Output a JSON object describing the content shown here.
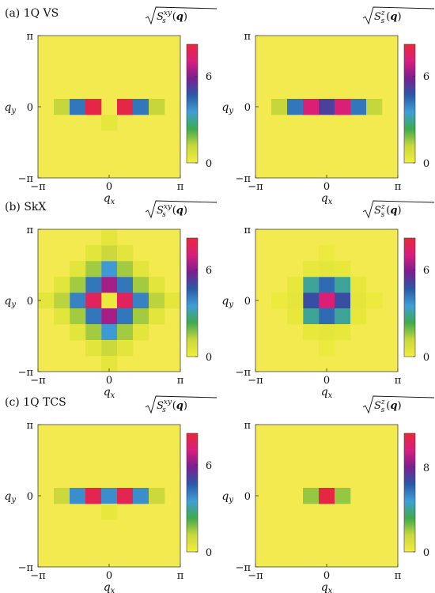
{
  "colors": {
    "background": "#f2ea4e",
    "scale": [
      "#f3ee3c",
      "#c9d83c",
      "#3faa4d",
      "#3e9fd6",
      "#2a59a8",
      "#7a1f8f",
      "#d91e7e",
      "#e8283b"
    ]
  },
  "axis_text": {
    "pi": "π",
    "neg_pi": "−π",
    "zero": "0",
    "q": "q",
    "x_sub": "x",
    "y_sub": "y"
  },
  "colorbar_text": {
    "xy_sup": "xy",
    "z_sup": "z",
    "sub": "s",
    "bold_q": "q"
  },
  "chart_data": [
    {
      "type": "heatmap",
      "panel_label": "(a) 1Q VS",
      "quantity": "sqrt(S_s^xy(q))",
      "xlabel": "q_x",
      "ylabel": "q_y",
      "xlim": [
        "-π",
        "π"
      ],
      "ylim": [
        "-π",
        "π"
      ],
      "grid_size": 9,
      "vmax": 8.2,
      "colorbar_ticks": [
        0,
        6
      ],
      "cells": [
        {
          "i": -3,
          "j": 0,
          "v": 1.2
        },
        {
          "i": -2,
          "j": 0,
          "v": 4.2
        },
        {
          "i": -1,
          "j": 0,
          "v": 8.0
        },
        {
          "i": 1,
          "j": 0,
          "v": 8.0
        },
        {
          "i": 2,
          "j": 0,
          "v": 4.2
        },
        {
          "i": 3,
          "j": 0,
          "v": 1.2
        },
        {
          "i": 0,
          "j": -1,
          "v": 0.35
        }
      ]
    },
    {
      "type": "heatmap",
      "panel_label": "",
      "quantity": "sqrt(S_s^z(q))",
      "xlabel": "q_x",
      "ylabel": "q_y",
      "xlim": [
        "-π",
        "π"
      ],
      "ylim": [
        "-π",
        "π"
      ],
      "grid_size": 9,
      "vmax": 8.2,
      "colorbar_ticks": [
        0,
        6
      ],
      "cells": [
        {
          "i": -3,
          "j": 0,
          "v": 1.2
        },
        {
          "i": -2,
          "j": 0,
          "v": 4.2
        },
        {
          "i": -1,
          "j": 0,
          "v": 7.2
        },
        {
          "i": 0,
          "j": 0,
          "v": 5.2
        },
        {
          "i": 1,
          "j": 0,
          "v": 7.2
        },
        {
          "i": 2,
          "j": 0,
          "v": 4.2
        },
        {
          "i": 3,
          "j": 0,
          "v": 1.2
        }
      ]
    },
    {
      "type": "heatmap",
      "panel_label": "(b) SkX",
      "quantity": "sqrt(S_s^xy(q))",
      "xlabel": "q_x",
      "ylabel": "q_y",
      "xlim": [
        "-π",
        "π"
      ],
      "ylim": [
        "-π",
        "π"
      ],
      "grid_size": 9,
      "vmax": 8.2,
      "colorbar_ticks": [
        0,
        6
      ],
      "cells": [
        {
          "i": 0,
          "j": 0,
          "v": 0.2
        },
        {
          "i": 1,
          "j": 0,
          "v": 7.6
        },
        {
          "i": -1,
          "j": 0,
          "v": 7.6
        },
        {
          "i": 0,
          "j": 1,
          "v": 6.4
        },
        {
          "i": 0,
          "j": -1,
          "v": 6.4
        },
        {
          "i": 1,
          "j": 1,
          "v": 4.2
        },
        {
          "i": -1,
          "j": 1,
          "v": 4.2
        },
        {
          "i": 1,
          "j": -1,
          "v": 4.2
        },
        {
          "i": -1,
          "j": -1,
          "v": 4.2
        },
        {
          "i": 2,
          "j": 0,
          "v": 4.0
        },
        {
          "i": -2,
          "j": 0,
          "v": 4.0
        },
        {
          "i": 0,
          "j": 2,
          "v": 3.6
        },
        {
          "i": 0,
          "j": -2,
          "v": 3.6
        },
        {
          "i": 2,
          "j": 1,
          "v": 1.5
        },
        {
          "i": -2,
          "j": 1,
          "v": 1.5
        },
        {
          "i": 2,
          "j": -1,
          "v": 1.5
        },
        {
          "i": -2,
          "j": -1,
          "v": 1.5
        },
        {
          "i": 1,
          "j": 2,
          "v": 1.5
        },
        {
          "i": -1,
          "j": 2,
          "v": 1.5
        },
        {
          "i": 1,
          "j": -2,
          "v": 1.5
        },
        {
          "i": -1,
          "j": -2,
          "v": 1.5
        },
        {
          "i": 3,
          "j": 0,
          "v": 1.3
        },
        {
          "i": -3,
          "j": 0,
          "v": 1.3
        },
        {
          "i": 0,
          "j": 3,
          "v": 1.1
        },
        {
          "i": 0,
          "j": -3,
          "v": 1.1
        },
        {
          "i": 2,
          "j": 2,
          "v": 0.5
        },
        {
          "i": -2,
          "j": 2,
          "v": 0.5
        },
        {
          "i": 2,
          "j": -2,
          "v": 0.5
        },
        {
          "i": -2,
          "j": -2,
          "v": 0.5
        },
        {
          "i": 3,
          "j": 1,
          "v": 0.5
        },
        {
          "i": -3,
          "j": 1,
          "v": 0.5
        },
        {
          "i": 3,
          "j": -1,
          "v": 0.5
        },
        {
          "i": -3,
          "j": -1,
          "v": 0.5
        },
        {
          "i": 1,
          "j": 3,
          "v": 0.5
        },
        {
          "i": -1,
          "j": 3,
          "v": 0.5
        },
        {
          "i": 1,
          "j": -3,
          "v": 0.5
        },
        {
          "i": -1,
          "j": -3,
          "v": 0.5
        },
        {
          "i": 4,
          "j": 0,
          "v": 0.4
        },
        {
          "i": -4,
          "j": 0,
          "v": 0.4
        },
        {
          "i": 0,
          "j": 4,
          "v": 0.4
        },
        {
          "i": 0,
          "j": -4,
          "v": 0.4
        }
      ]
    },
    {
      "type": "heatmap",
      "panel_label": "",
      "quantity": "sqrt(S_s^z(q))",
      "xlabel": "q_x",
      "ylabel": "q_y",
      "xlim": [
        "-π",
        "π"
      ],
      "ylim": [
        "-π",
        "π"
      ],
      "grid_size": 9,
      "vmax": 8.2,
      "colorbar_ticks": [
        0,
        6
      ],
      "cells": [
        {
          "i": 0,
          "j": 0,
          "v": 7.2
        },
        {
          "i": 1,
          "j": 0,
          "v": 4.9
        },
        {
          "i": -1,
          "j": 0,
          "v": 4.9
        },
        {
          "i": 0,
          "j": 1,
          "v": 4.4
        },
        {
          "i": 0,
          "j": -1,
          "v": 4.4
        },
        {
          "i": 1,
          "j": 1,
          "v": 3.0
        },
        {
          "i": -1,
          "j": 1,
          "v": 3.0
        },
        {
          "i": 1,
          "j": -1,
          "v": 3.0
        },
        {
          "i": -1,
          "j": -1,
          "v": 3.0
        },
        {
          "i": 2,
          "j": 0,
          "v": 0.4
        },
        {
          "i": -2,
          "j": 0,
          "v": 0.4
        },
        {
          "i": 0,
          "j": 2,
          "v": 0.4
        },
        {
          "i": 0,
          "j": -2,
          "v": 0.4
        },
        {
          "i": 2,
          "j": 1,
          "v": 0.3
        },
        {
          "i": -2,
          "j": 1,
          "v": 0.3
        },
        {
          "i": 2,
          "j": -1,
          "v": 0.3
        },
        {
          "i": -2,
          "j": -1,
          "v": 0.3
        },
        {
          "i": 1,
          "j": 2,
          "v": 0.3
        },
        {
          "i": -1,
          "j": 2,
          "v": 0.3
        },
        {
          "i": 1,
          "j": -2,
          "v": 0.3
        },
        {
          "i": -1,
          "j": -2,
          "v": 0.3
        },
        {
          "i": 3,
          "j": 0,
          "v": 0.2
        },
        {
          "i": -3,
          "j": 0,
          "v": 0.2
        },
        {
          "i": 0,
          "j": 3,
          "v": 0.2
        },
        {
          "i": 0,
          "j": -3,
          "v": 0.2
        }
      ]
    },
    {
      "type": "heatmap",
      "panel_label": "(c) 1Q TCS",
      "quantity": "sqrt(S_s^xy(q))",
      "xlabel": "q_x",
      "ylabel": "q_y",
      "xlim": [
        "-π",
        "π"
      ],
      "ylim": [
        "-π",
        "π"
      ],
      "grid_size": 9,
      "vmax": 8.2,
      "colorbar_ticks": [
        0,
        6
      ],
      "cells": [
        {
          "i": -3,
          "j": 0,
          "v": 1.1
        },
        {
          "i": -2,
          "j": 0,
          "v": 3.8
        },
        {
          "i": -1,
          "j": 0,
          "v": 7.8
        },
        {
          "i": 0,
          "j": 0,
          "v": 3.8
        },
        {
          "i": 1,
          "j": 0,
          "v": 7.8
        },
        {
          "i": 2,
          "j": 0,
          "v": 3.8
        },
        {
          "i": 3,
          "j": 0,
          "v": 1.1
        },
        {
          "i": 0,
          "j": -1,
          "v": 0.3
        }
      ]
    },
    {
      "type": "heatmap",
      "panel_label": "",
      "quantity": "sqrt(S_s^z(q))",
      "xlabel": "q_x",
      "ylabel": "q_y",
      "xlim": [
        "-π",
        "π"
      ],
      "ylim": [
        "-π",
        "π"
      ],
      "grid_size": 9,
      "vmax": 11.2,
      "colorbar_ticks": [
        0,
        8
      ],
      "cells": [
        {
          "i": -1,
          "j": 0,
          "v": 2.2
        },
        {
          "i": 0,
          "j": 0,
          "v": 11.0
        },
        {
          "i": 1,
          "j": 0,
          "v": 2.2
        }
      ]
    }
  ]
}
